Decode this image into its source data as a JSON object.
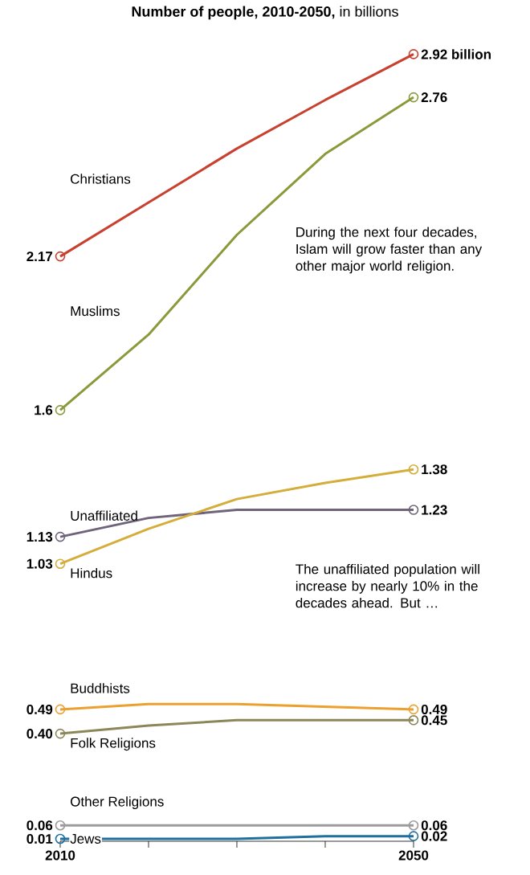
{
  "chart_data": {
    "type": "line",
    "title": "**Number of people, 2010-2050,** in billions",
    "x": [
      2010,
      2020,
      2030,
      2040,
      2050
    ],
    "xlim": [
      2010,
      2050
    ],
    "xticks": [
      2010,
      {
        "value": 2020,
        "label": null
      },
      {
        "value": 2030,
        "label": null
      },
      {
        "value": 2040,
        "label": null
      },
      2050
    ],
    "tick_labels": "x",
    "legend": false,
    "grid": false,
    "series": [
      {
        "name": "Christians",
        "color": "#c8412f",
        "values": [
          2.17,
          2.37,
          2.57,
          2.75,
          2.92
        ],
        "value_labels": [
          "2.17",
          null,
          null,
          null,
          "2.92 billion"
        ]
      },
      {
        "name": "Muslims",
        "color": "#8a9a3b",
        "values": [
          1.6,
          1.88,
          2.25,
          2.55,
          2.76
        ],
        "value_labels": [
          "1.6",
          null,
          null,
          null,
          "2.76"
        ]
      },
      {
        "name": "Unaffiliated",
        "color": "#6f6479",
        "values": [
          1.13,
          1.2,
          1.23,
          1.23,
          1.23
        ],
        "value_labels": [
          "1.13",
          null,
          null,
          null,
          "1.23"
        ]
      },
      {
        "name": "Hindus",
        "color": "#d4ad3a",
        "values": [
          1.03,
          1.16,
          1.27,
          1.33,
          1.38
        ],
        "value_labels": [
          "1.03",
          null,
          null,
          null,
          "1.38"
        ]
      },
      {
        "name": "Buddhists",
        "color": "#eca030",
        "values": [
          0.49,
          0.51,
          0.51,
          0.5,
          0.49
        ],
        "value_labels": [
          "0.49",
          null,
          null,
          null,
          "0.49"
        ]
      },
      {
        "name": "Folk Religions",
        "color": "#8c8758",
        "values": [
          0.4,
          0.43,
          0.45,
          0.45,
          0.45
        ],
        "value_labels": [
          "0.40",
          null,
          null,
          null,
          "0.45"
        ]
      },
      {
        "name": "Other Religions",
        "color": "#9b9b9b",
        "values": [
          0.06,
          0.06,
          0.06,
          0.06,
          0.06
        ],
        "value_labels": [
          "0.06",
          null,
          null,
          null,
          "0.06"
        ]
      },
      {
        "name": "Jews",
        "color": "#1f6f9f",
        "values": [
          0.01,
          0.01,
          0.01,
          0.02,
          0.02
        ],
        "value_labels": [
          "0.01",
          null,
          null,
          null,
          "0.02"
        ]
      }
    ],
    "annotations": [
      "During the next four decades, Islam will grow faster than any other major world religion.",
      "The unaffiliated population will increase by nearly 10% in the decades ahead. But …"
    ]
  }
}
